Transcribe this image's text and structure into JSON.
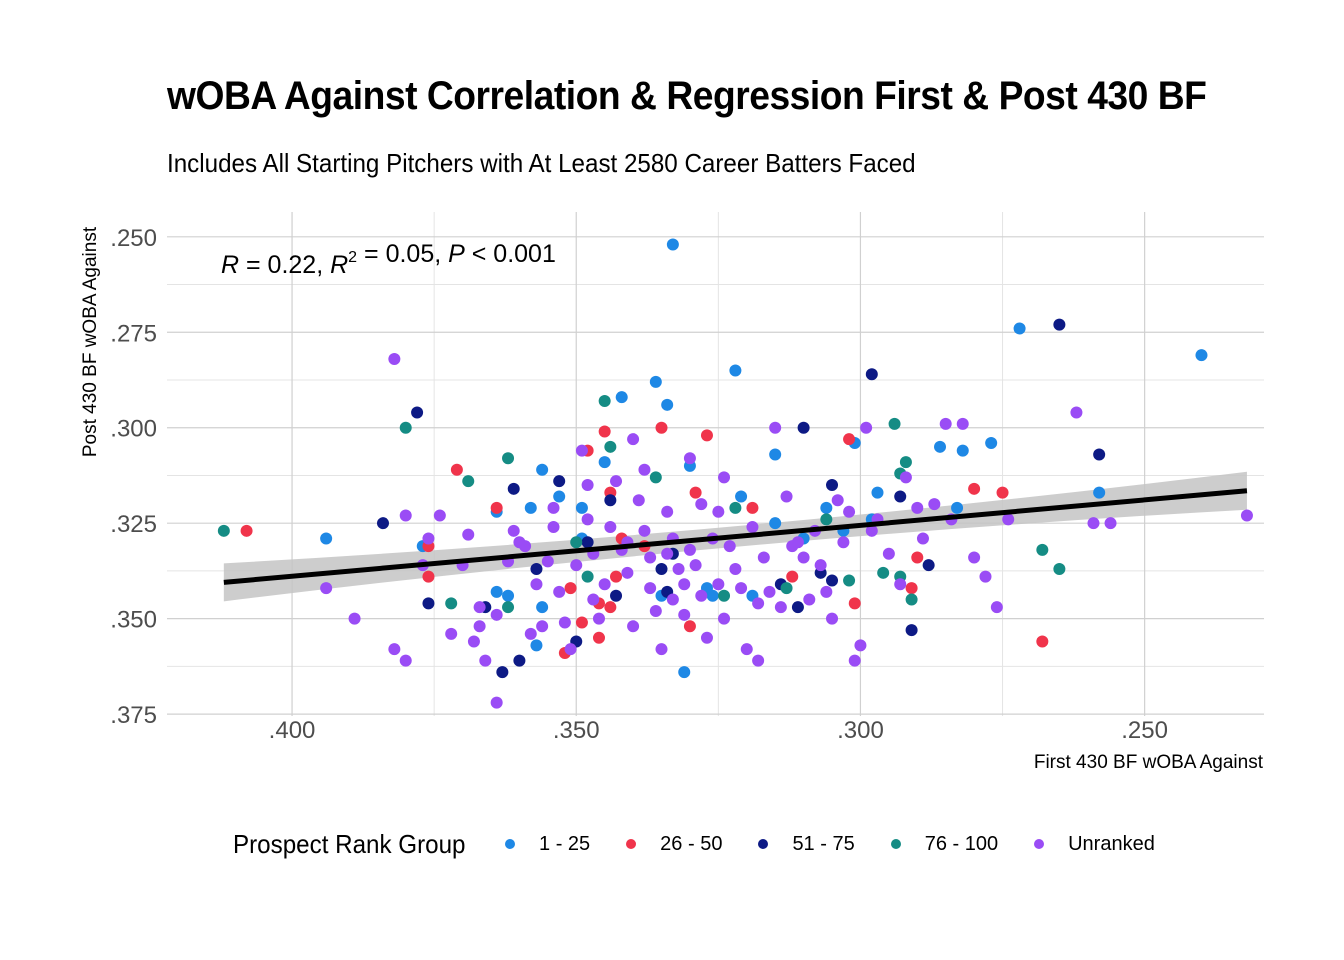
{
  "chart_data": {
    "type": "scatter",
    "title": "wOBA Against Correlation & Regression First & Post 430 BF",
    "subtitle": "Includes All Starting Pitchers with At Least 2580 Career Batters Faced",
    "xlabel": "First 430 BF wOBA Against",
    "ylabel": "Post 430 BF wOBA Against",
    "x_reversed": true,
    "y_reversed": true,
    "xlim": [
      0.422,
      0.229
    ],
    "ylim": [
      0.2435,
      0.3755
    ],
    "x_ticks": [
      0.4,
      0.35,
      0.3,
      0.25
    ],
    "x_tick_labels": [
      ".400",
      ".350",
      ".300",
      ".250"
    ],
    "y_ticks": [
      0.25,
      0.275,
      0.3,
      0.325,
      0.35,
      0.375
    ],
    "y_tick_labels": [
      ".250",
      ".275",
      ".300",
      ".325",
      ".350",
      ".375"
    ],
    "grid": true,
    "annotation": {
      "R": "0.22",
      "R2": "0.05",
      "P": "0.001"
    },
    "regression": {
      "x": [
        0.412,
        0.232
      ],
      "y": [
        0.3405,
        0.3165
      ]
    },
    "legend": {
      "title": "Prospect Rank Group",
      "position": "bottom",
      "entries": [
        {
          "label": "1 - 25",
          "color": "#1e88e5"
        },
        {
          "label": "26 - 50",
          "color": "#f0344b"
        },
        {
          "label": "51 - 75",
          "color": "#0d1a85"
        },
        {
          "label": "76 - 100",
          "color": "#158c84"
        },
        {
          "label": "Unranked",
          "color": "#9a4cf5"
        }
      ]
    },
    "series": [
      {
        "name": "1 - 25",
        "color": "#1e88e5",
        "points": [
          [
            0.394,
            0.329
          ],
          [
            0.333,
            0.252
          ],
          [
            0.272,
            0.274
          ],
          [
            0.24,
            0.281
          ],
          [
            0.336,
            0.288
          ],
          [
            0.342,
            0.292
          ],
          [
            0.322,
            0.285
          ],
          [
            0.334,
            0.294
          ],
          [
            0.301,
            0.304
          ],
          [
            0.286,
            0.305
          ],
          [
            0.277,
            0.304
          ],
          [
            0.282,
            0.306
          ],
          [
            0.315,
            0.307
          ],
          [
            0.345,
            0.309
          ],
          [
            0.356,
            0.311
          ],
          [
            0.33,
            0.31
          ],
          [
            0.321,
            0.318
          ],
          [
            0.297,
            0.317
          ],
          [
            0.364,
            0.322
          ],
          [
            0.358,
            0.321
          ],
          [
            0.349,
            0.321
          ],
          [
            0.315,
            0.325
          ],
          [
            0.283,
            0.321
          ],
          [
            0.258,
            0.317
          ],
          [
            0.306,
            0.321
          ],
          [
            0.377,
            0.331
          ],
          [
            0.349,
            0.329
          ],
          [
            0.327,
            0.342
          ],
          [
            0.356,
            0.347
          ],
          [
            0.362,
            0.344
          ],
          [
            0.357,
            0.357
          ],
          [
            0.335,
            0.344
          ],
          [
            0.331,
            0.364
          ],
          [
            0.319,
            0.344
          ],
          [
            0.326,
            0.344
          ],
          [
            0.303,
            0.327
          ],
          [
            0.31,
            0.329
          ],
          [
            0.298,
            0.324
          ],
          [
            0.364,
            0.343
          ],
          [
            0.353,
            0.318
          ]
        ]
      },
      {
        "name": "26 - 50",
        "color": "#f0344b",
        "points": [
          [
            0.408,
            0.327
          ],
          [
            0.376,
            0.339
          ],
          [
            0.376,
            0.331
          ],
          [
            0.371,
            0.311
          ],
          [
            0.364,
            0.321
          ],
          [
            0.351,
            0.342
          ],
          [
            0.345,
            0.301
          ],
          [
            0.348,
            0.306
          ],
          [
            0.335,
            0.3
          ],
          [
            0.327,
            0.302
          ],
          [
            0.344,
            0.317
          ],
          [
            0.329,
            0.317
          ],
          [
            0.302,
            0.303
          ],
          [
            0.319,
            0.321
          ],
          [
            0.342,
            0.329
          ],
          [
            0.343,
            0.339
          ],
          [
            0.346,
            0.346
          ],
          [
            0.344,
            0.347
          ],
          [
            0.349,
            0.351
          ],
          [
            0.346,
            0.355
          ],
          [
            0.352,
            0.359
          ],
          [
            0.33,
            0.352
          ],
          [
            0.312,
            0.339
          ],
          [
            0.301,
            0.346
          ],
          [
            0.29,
            0.334
          ],
          [
            0.291,
            0.342
          ],
          [
            0.28,
            0.316
          ],
          [
            0.268,
            0.356
          ],
          [
            0.275,
            0.317
          ],
          [
            0.338,
            0.331
          ]
        ]
      },
      {
        "name": "51 - 75",
        "color": "#0d1a85",
        "points": [
          [
            0.378,
            0.296
          ],
          [
            0.384,
            0.325
          ],
          [
            0.361,
            0.316
          ],
          [
            0.353,
            0.314
          ],
          [
            0.344,
            0.319
          ],
          [
            0.31,
            0.3
          ],
          [
            0.298,
            0.286
          ],
          [
            0.265,
            0.273
          ],
          [
            0.258,
            0.307
          ],
          [
            0.305,
            0.315
          ],
          [
            0.293,
            0.318
          ],
          [
            0.366,
            0.347
          ],
          [
            0.376,
            0.346
          ],
          [
            0.36,
            0.361
          ],
          [
            0.357,
            0.337
          ],
          [
            0.35,
            0.356
          ],
          [
            0.343,
            0.344
          ],
          [
            0.334,
            0.343
          ],
          [
            0.335,
            0.337
          ],
          [
            0.333,
            0.333
          ],
          [
            0.314,
            0.341
          ],
          [
            0.311,
            0.347
          ],
          [
            0.307,
            0.338
          ],
          [
            0.305,
            0.34
          ],
          [
            0.291,
            0.353
          ],
          [
            0.288,
            0.336
          ],
          [
            0.363,
            0.364
          ],
          [
            0.348,
            0.33
          ]
        ]
      },
      {
        "name": "76 - 100",
        "color": "#158c84",
        "points": [
          [
            0.412,
            0.327
          ],
          [
            0.38,
            0.3
          ],
          [
            0.369,
            0.314
          ],
          [
            0.362,
            0.308
          ],
          [
            0.345,
            0.293
          ],
          [
            0.344,
            0.305
          ],
          [
            0.336,
            0.313
          ],
          [
            0.322,
            0.321
          ],
          [
            0.294,
            0.299
          ],
          [
            0.293,
            0.312
          ],
          [
            0.292,
            0.309
          ],
          [
            0.268,
            0.332
          ],
          [
            0.265,
            0.337
          ],
          [
            0.296,
            0.338
          ],
          [
            0.291,
            0.345
          ],
          [
            0.293,
            0.339
          ],
          [
            0.302,
            0.34
          ],
          [
            0.313,
            0.342
          ],
          [
            0.324,
            0.344
          ],
          [
            0.348,
            0.339
          ],
          [
            0.362,
            0.347
          ],
          [
            0.372,
            0.346
          ],
          [
            0.35,
            0.33
          ],
          [
            0.306,
            0.324
          ]
        ]
      },
      {
        "name": "Unranked",
        "color": "#9a4cf5",
        "points": [
          [
            0.382,
            0.282
          ],
          [
            0.394,
            0.342
          ],
          [
            0.389,
            0.35
          ],
          [
            0.382,
            0.358
          ],
          [
            0.377,
            0.336
          ],
          [
            0.38,
            0.323
          ],
          [
            0.376,
            0.329
          ],
          [
            0.374,
            0.323
          ],
          [
            0.372,
            0.354
          ],
          [
            0.369,
            0.328
          ],
          [
            0.37,
            0.336
          ],
          [
            0.368,
            0.356
          ],
          [
            0.367,
            0.347
          ],
          [
            0.366,
            0.361
          ],
          [
            0.364,
            0.372
          ],
          [
            0.364,
            0.349
          ],
          [
            0.362,
            0.335
          ],
          [
            0.361,
            0.327
          ],
          [
            0.36,
            0.33
          ],
          [
            0.359,
            0.331
          ],
          [
            0.357,
            0.341
          ],
          [
            0.356,
            0.352
          ],
          [
            0.355,
            0.335
          ],
          [
            0.354,
            0.321
          ],
          [
            0.354,
            0.326
          ],
          [
            0.353,
            0.343
          ],
          [
            0.352,
            0.351
          ],
          [
            0.351,
            0.358
          ],
          [
            0.35,
            0.336
          ],
          [
            0.349,
            0.306
          ],
          [
            0.348,
            0.315
          ],
          [
            0.348,
            0.324
          ],
          [
            0.347,
            0.333
          ],
          [
            0.347,
            0.345
          ],
          [
            0.346,
            0.35
          ],
          [
            0.345,
            0.341
          ],
          [
            0.344,
            0.326
          ],
          [
            0.343,
            0.314
          ],
          [
            0.342,
            0.332
          ],
          [
            0.341,
            0.338
          ],
          [
            0.34,
            0.303
          ],
          [
            0.34,
            0.352
          ],
          [
            0.339,
            0.319
          ],
          [
            0.338,
            0.311
          ],
          [
            0.338,
            0.327
          ],
          [
            0.337,
            0.334
          ],
          [
            0.337,
            0.342
          ],
          [
            0.336,
            0.348
          ],
          [
            0.335,
            0.358
          ],
          [
            0.334,
            0.333
          ],
          [
            0.334,
            0.322
          ],
          [
            0.333,
            0.329
          ],
          [
            0.333,
            0.345
          ],
          [
            0.332,
            0.337
          ],
          [
            0.331,
            0.341
          ],
          [
            0.331,
            0.349
          ],
          [
            0.33,
            0.308
          ],
          [
            0.33,
            0.332
          ],
          [
            0.329,
            0.336
          ],
          [
            0.328,
            0.32
          ],
          [
            0.328,
            0.344
          ],
          [
            0.327,
            0.355
          ],
          [
            0.326,
            0.329
          ],
          [
            0.325,
            0.341
          ],
          [
            0.324,
            0.313
          ],
          [
            0.324,
            0.35
          ],
          [
            0.323,
            0.331
          ],
          [
            0.322,
            0.337
          ],
          [
            0.321,
            0.342
          ],
          [
            0.32,
            0.358
          ],
          [
            0.319,
            0.326
          ],
          [
            0.318,
            0.361
          ],
          [
            0.317,
            0.334
          ],
          [
            0.316,
            0.343
          ],
          [
            0.315,
            0.3
          ],
          [
            0.314,
            0.347
          ],
          [
            0.313,
            0.318
          ],
          [
            0.312,
            0.331
          ],
          [
            0.311,
            0.33
          ],
          [
            0.309,
            0.345
          ],
          [
            0.308,
            0.327
          ],
          [
            0.307,
            0.336
          ],
          [
            0.306,
            0.343
          ],
          [
            0.305,
            0.35
          ],
          [
            0.304,
            0.319
          ],
          [
            0.303,
            0.33
          ],
          [
            0.302,
            0.322
          ],
          [
            0.301,
            0.361
          ],
          [
            0.3,
            0.357
          ],
          [
            0.299,
            0.3
          ],
          [
            0.298,
            0.327
          ],
          [
            0.297,
            0.324
          ],
          [
            0.295,
            0.333
          ],
          [
            0.293,
            0.341
          ],
          [
            0.292,
            0.313
          ],
          [
            0.29,
            0.321
          ],
          [
            0.289,
            0.329
          ],
          [
            0.287,
            0.32
          ],
          [
            0.285,
            0.299
          ],
          [
            0.284,
            0.324
          ],
          [
            0.282,
            0.299
          ],
          [
            0.28,
            0.334
          ],
          [
            0.278,
            0.339
          ],
          [
            0.276,
            0.347
          ],
          [
            0.274,
            0.324
          ],
          [
            0.262,
            0.296
          ],
          [
            0.259,
            0.325
          ],
          [
            0.256,
            0.325
          ],
          [
            0.232,
            0.323
          ],
          [
            0.38,
            0.361
          ],
          [
            0.367,
            0.352
          ],
          [
            0.358,
            0.354
          ],
          [
            0.341,
            0.33
          ],
          [
            0.325,
            0.322
          ],
          [
            0.318,
            0.346
          ],
          [
            0.31,
            0.334
          ]
        ]
      }
    ]
  }
}
